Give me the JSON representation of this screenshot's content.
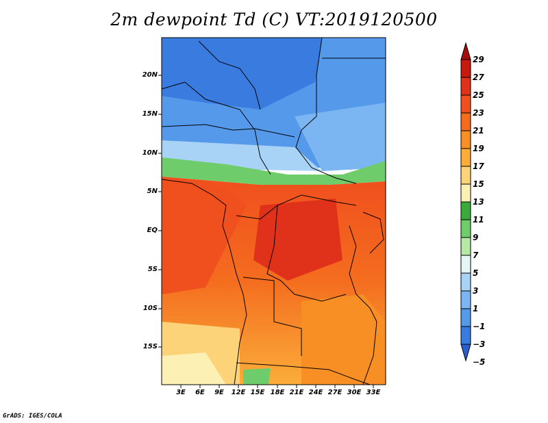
{
  "title": "2m dewpoint Td (C) VT:2019120500",
  "credit": "GrADS: IGES/COLA",
  "lat_labels": [
    "20N",
    "15N",
    "10N",
    "5N",
    "EQ",
    "5S",
    "10S",
    "15S"
  ],
  "lon_labels": [
    "3E",
    "6E",
    "9E",
    "12E",
    "15E",
    "18E",
    "21E",
    "24E",
    "27E",
    "30E",
    "33E"
  ],
  "colorbar": {
    "labels": [
      "29",
      "27",
      "25",
      "23",
      "21",
      "19",
      "17",
      "15",
      "13",
      "11",
      "9",
      "7",
      "5",
      "3",
      "1",
      "−1",
      "−3",
      "−5"
    ],
    "colors": [
      "#a50d0d",
      "#c8190f",
      "#e0321a",
      "#f04f1e",
      "#f46d1f",
      "#f88f25",
      "#fbad3a",
      "#fdd37a",
      "#fdf0b4",
      "#3aab3a",
      "#6fcc6a",
      "#b6e8a6",
      "#e6f6f4",
      "#a8d2f6",
      "#7cb6f2",
      "#5599ea",
      "#3a7be0",
      "#2a5ed1"
    ]
  }
}
